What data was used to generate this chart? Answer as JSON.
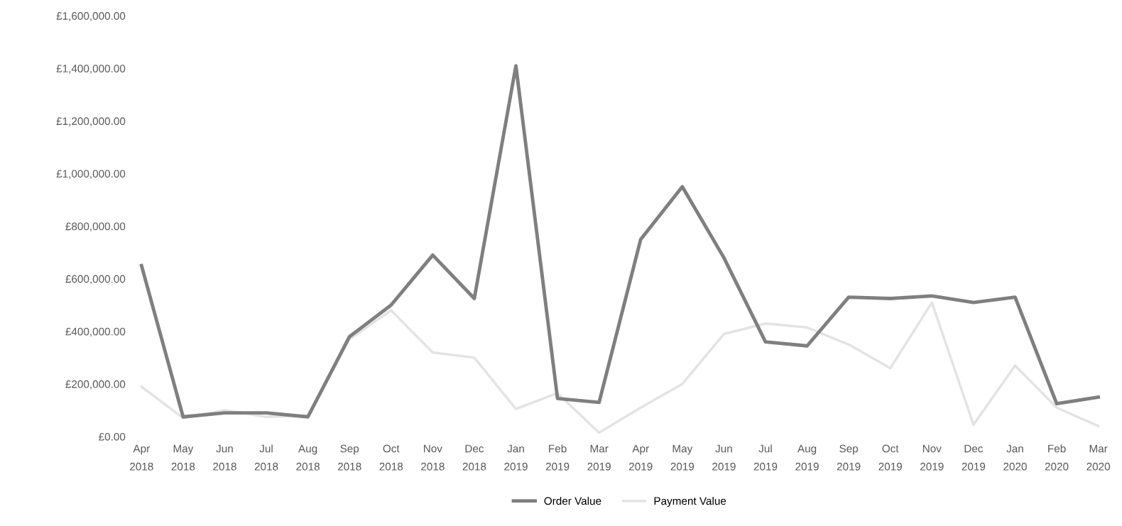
{
  "chart_data": {
    "type": "line",
    "categories": [
      "Apr\n2018",
      "May\n2018",
      "Jun\n2018",
      "Jul\n2018",
      "Aug\n2018",
      "Sep\n2018",
      "Oct\n2018",
      "Nov\n2018",
      "Dec\n2018",
      "Jan\n2019",
      "Feb\n2019",
      "Mar\n2019",
      "Apr\n2019",
      "May\n2019",
      "Jun\n2019",
      "Jul\n2019",
      "Aug\n2019",
      "Sep\n2019",
      "Oct\n2019",
      "Nov\n2019",
      "Dec\n2019",
      "Jan\n2020",
      "Feb\n2020",
      "Mar\n2020"
    ],
    "series": [
      {
        "name": "Order Value",
        "color": "#7f7f7f",
        "values": [
          650000,
          75000,
          90000,
          90000,
          75000,
          380000,
          500000,
          690000,
          525000,
          1410000,
          145000,
          130000,
          750000,
          950000,
          680000,
          360000,
          345000,
          530000,
          525000,
          535000,
          510000,
          530000,
          125000,
          150000
        ]
      },
      {
        "name": "Payment Value",
        "color": "#e3e3e3",
        "values": [
          190000,
          70000,
          100000,
          75000,
          80000,
          370000,
          480000,
          320000,
          300000,
          105000,
          165000,
          15000,
          110000,
          200000,
          390000,
          430000,
          415000,
          350000,
          260000,
          510000,
          45000,
          270000,
          110000,
          40000
        ]
      }
    ],
    "ylim": [
      0,
      1600000
    ],
    "yticks": [
      {
        "value": 0,
        "label": "£0.00"
      },
      {
        "value": 200000,
        "label": "£200,000.00"
      },
      {
        "value": 400000,
        "label": "£400,000.00"
      },
      {
        "value": 600000,
        "label": "£600,000.00"
      },
      {
        "value": 800000,
        "label": "£800,000.00"
      },
      {
        "value": 1000000,
        "label": "£1,000,000.00"
      },
      {
        "value": 1200000,
        "label": "£1,200,000.00"
      },
      {
        "value": 1400000,
        "label": "£1,400,000.00"
      },
      {
        "value": 1600000,
        "label": "£1,600,000.00"
      }
    ],
    "grid": false,
    "legend": "bottom",
    "marker": "none",
    "line_style": "solid"
  }
}
